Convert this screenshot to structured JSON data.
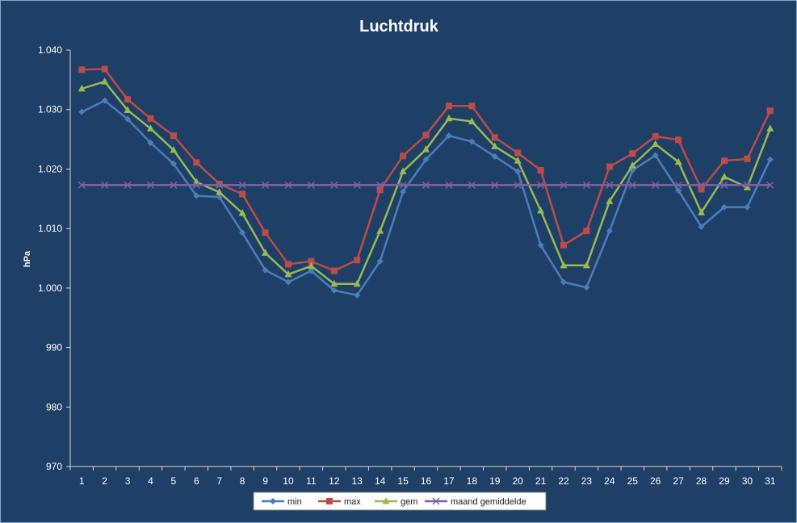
{
  "chart_data": {
    "type": "line",
    "title": "Luchtdruk",
    "xlabel": "",
    "ylabel": "hPa",
    "ylim": [
      970,
      1040
    ],
    "y_ticks": [
      {
        "value": 970,
        "label": "970"
      },
      {
        "value": 980,
        "label": "980"
      },
      {
        "value": 990,
        "label": "990"
      },
      {
        "value": 1000,
        "label": "1.000"
      },
      {
        "value": 1010,
        "label": "1.010"
      },
      {
        "value": 1020,
        "label": "1.020"
      },
      {
        "value": 1030,
        "label": "1.030"
      },
      {
        "value": 1040,
        "label": "1.040"
      }
    ],
    "grid": false,
    "legend_position": "bottom",
    "categories": [
      "1",
      "2",
      "3",
      "4",
      "5",
      "6",
      "7",
      "8",
      "9",
      "10",
      "11",
      "12",
      "13",
      "14",
      "15",
      "16",
      "17",
      "18",
      "19",
      "20",
      "21",
      "22",
      "23",
      "24",
      "25",
      "26",
      "27",
      "28",
      "29",
      "30",
      "31"
    ],
    "series": [
      {
        "name": "min",
        "color": "#4a7ebb",
        "marker": "diamond",
        "values": [
          1029.6,
          1031.5,
          1028.4,
          1024.4,
          1020.9,
          1015.5,
          1015.3,
          1009.3,
          1003.0,
          1001.0,
          1002.9,
          999.6,
          998.8,
          1004.5,
          1016.2,
          1021.6,
          1025.6,
          1024.6,
          1022.1,
          1019.6,
          1007.2,
          1001.0,
          1000.1,
          1009.6,
          1019.8,
          1022.3,
          1016.4,
          1010.3,
          1013.6,
          1013.6,
          1021.6
        ]
      },
      {
        "name": "max",
        "color": "#be4b48",
        "marker": "square",
        "values": [
          1036.7,
          1036.8,
          1031.7,
          1028.5,
          1025.6,
          1021.1,
          1017.5,
          1015.8,
          1009.3,
          1004.0,
          1004.5,
          1002.9,
          1004.7,
          1016.5,
          1022.2,
          1025.7,
          1030.6,
          1030.6,
          1025.3,
          1022.7,
          1019.8,
          1007.2,
          1009.6,
          1020.4,
          1022.6,
          1025.5,
          1024.9,
          1016.6,
          1021.4,
          1021.7,
          1029.8
        ]
      },
      {
        "name": "gem",
        "color": "#98b954",
        "marker": "triangle",
        "values": [
          1033.5,
          1034.7,
          1029.9,
          1026.8,
          1023.2,
          1017.8,
          1016.1,
          1012.6,
          1005.9,
          1002.3,
          1003.7,
          1000.7,
          1000.7,
          1009.6,
          1019.6,
          1023.3,
          1028.5,
          1028.0,
          1023.8,
          1021.4,
          1013.0,
          1003.8,
          1003.8,
          1014.6,
          1020.6,
          1024.2,
          1021.2,
          1012.7,
          1018.7,
          1016.9,
          1026.8
        ]
      },
      {
        "name": "maand gemiddelde",
        "color": "#7d60a0",
        "marker": "x",
        "values": [
          1017.3,
          1017.3,
          1017.3,
          1017.3,
          1017.3,
          1017.3,
          1017.3,
          1017.3,
          1017.3,
          1017.3,
          1017.3,
          1017.3,
          1017.3,
          1017.3,
          1017.3,
          1017.3,
          1017.3,
          1017.3,
          1017.3,
          1017.3,
          1017.3,
          1017.3,
          1017.3,
          1017.3,
          1017.3,
          1017.3,
          1017.3,
          1017.3,
          1017.3,
          1017.3,
          1017.3
        ]
      }
    ]
  }
}
